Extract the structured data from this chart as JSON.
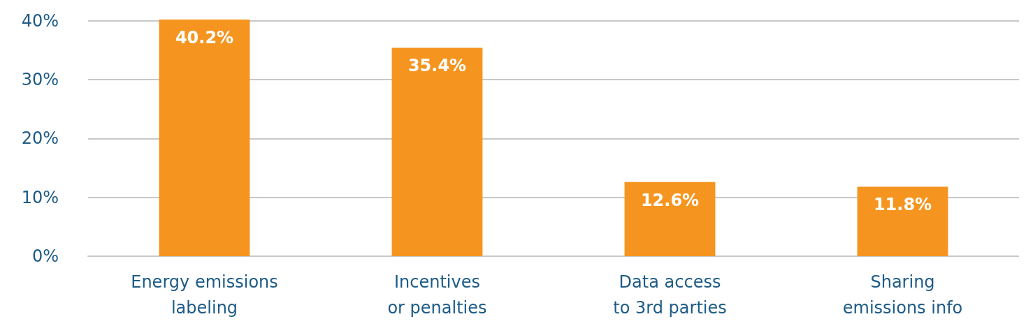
{
  "chart_data": {
    "type": "bar",
    "categories": [
      "Energy emissions\nlabeling",
      "Incentives\nor penalties",
      "Data access\nto 3rd parties",
      "Sharing\nemissions info"
    ],
    "values": [
      40.2,
      35.4,
      12.6,
      11.8
    ],
    "color": "#f5951f",
    "value_labels": [
      "40.2%",
      "35.4%",
      "12.6%",
      "11.8%"
    ],
    "ylim": [
      0,
      40.2
    ],
    "yticks": [
      {
        "value": 0,
        "label": "0%"
      },
      {
        "value": 10,
        "label": "10%"
      },
      {
        "value": 20,
        "label": "20%"
      },
      {
        "value": 30,
        "label": "30%"
      },
      {
        "value": 40,
        "label": "40%"
      }
    ],
    "grid": "y"
  }
}
